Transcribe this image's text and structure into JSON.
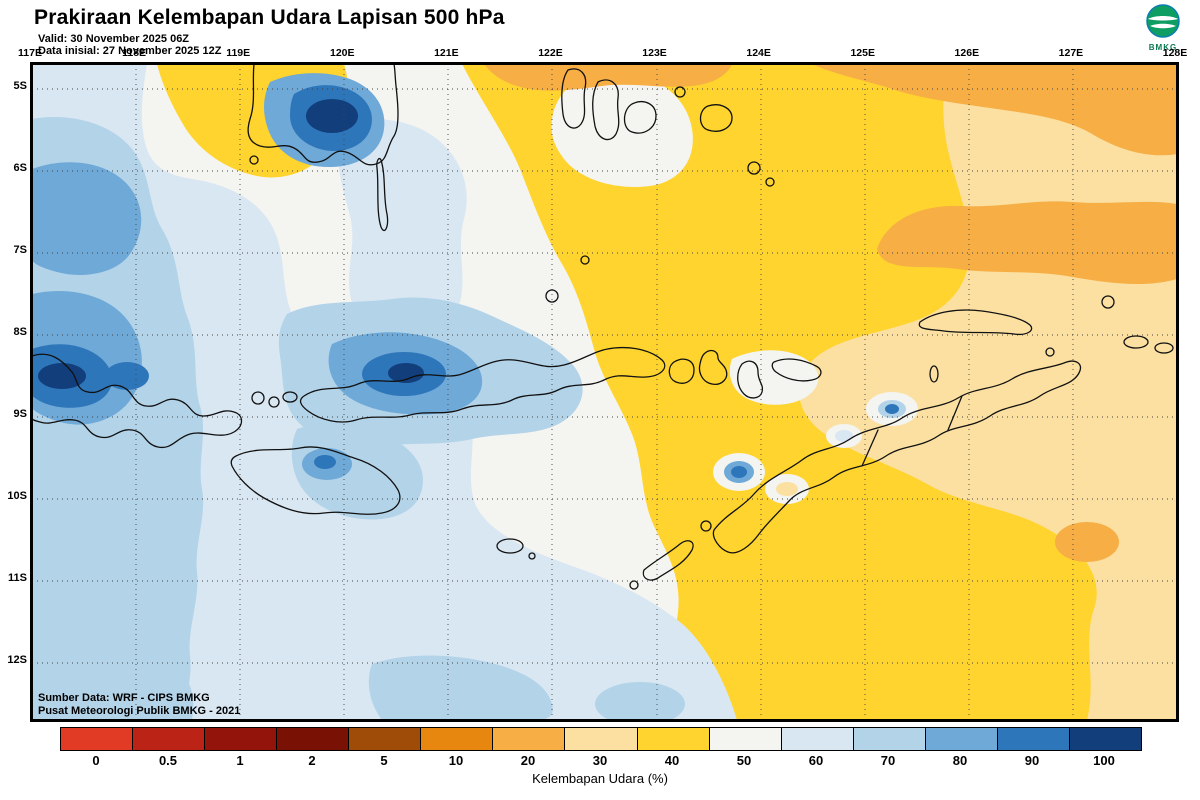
{
  "header": {
    "title": "Prakiraan Kelembapan Udara Lapisan 500 hPa",
    "valid": "Valid: 30 November 2025 06Z",
    "init": "Data inisial: 27 November 2025 12Z"
  },
  "logo": {
    "label": "BMKG"
  },
  "map": {
    "lon_labels": [
      "117E",
      "118E",
      "119E",
      "120E",
      "121E",
      "122E",
      "123E",
      "124E",
      "125E",
      "126E",
      "127E",
      "128E"
    ],
    "lat_labels": [
      "5S",
      "6S",
      "7S",
      "8S",
      "9S",
      "10S",
      "11S",
      "12S"
    ],
    "source_line1": "Sumber Data: WRF - CIPS BMKG",
    "source_line2": "Pusat Meteorologi Publik BMKG - 2021"
  },
  "legend": {
    "title": "Kelembapan Udara (%)",
    "segments": [
      {
        "label": "0",
        "color": "#e13b26"
      },
      {
        "label": "0.5",
        "color": "#bc2317"
      },
      {
        "label": "1",
        "color": "#93140b"
      },
      {
        "label": "2",
        "color": "#7a1105"
      },
      {
        "label": "5",
        "color": "#9e4c08"
      },
      {
        "label": "10",
        "color": "#e8870f"
      },
      {
        "label": "20",
        "color": "#f6ae45"
      },
      {
        "label": "30",
        "color": "#fbe0a1"
      },
      {
        "label": "40",
        "color": "#ffd42e"
      },
      {
        "label": "50",
        "color": "#f4f4f1"
      },
      {
        "label": "60",
        "color": "#d9e7f2"
      },
      {
        "label": "70",
        "color": "#b3d3e9"
      },
      {
        "label": "80",
        "color": "#6fa9d7"
      },
      {
        "label": "90",
        "color": "#2e76ba"
      },
      {
        "label": "100",
        "color": "#123e7c"
      }
    ]
  }
}
